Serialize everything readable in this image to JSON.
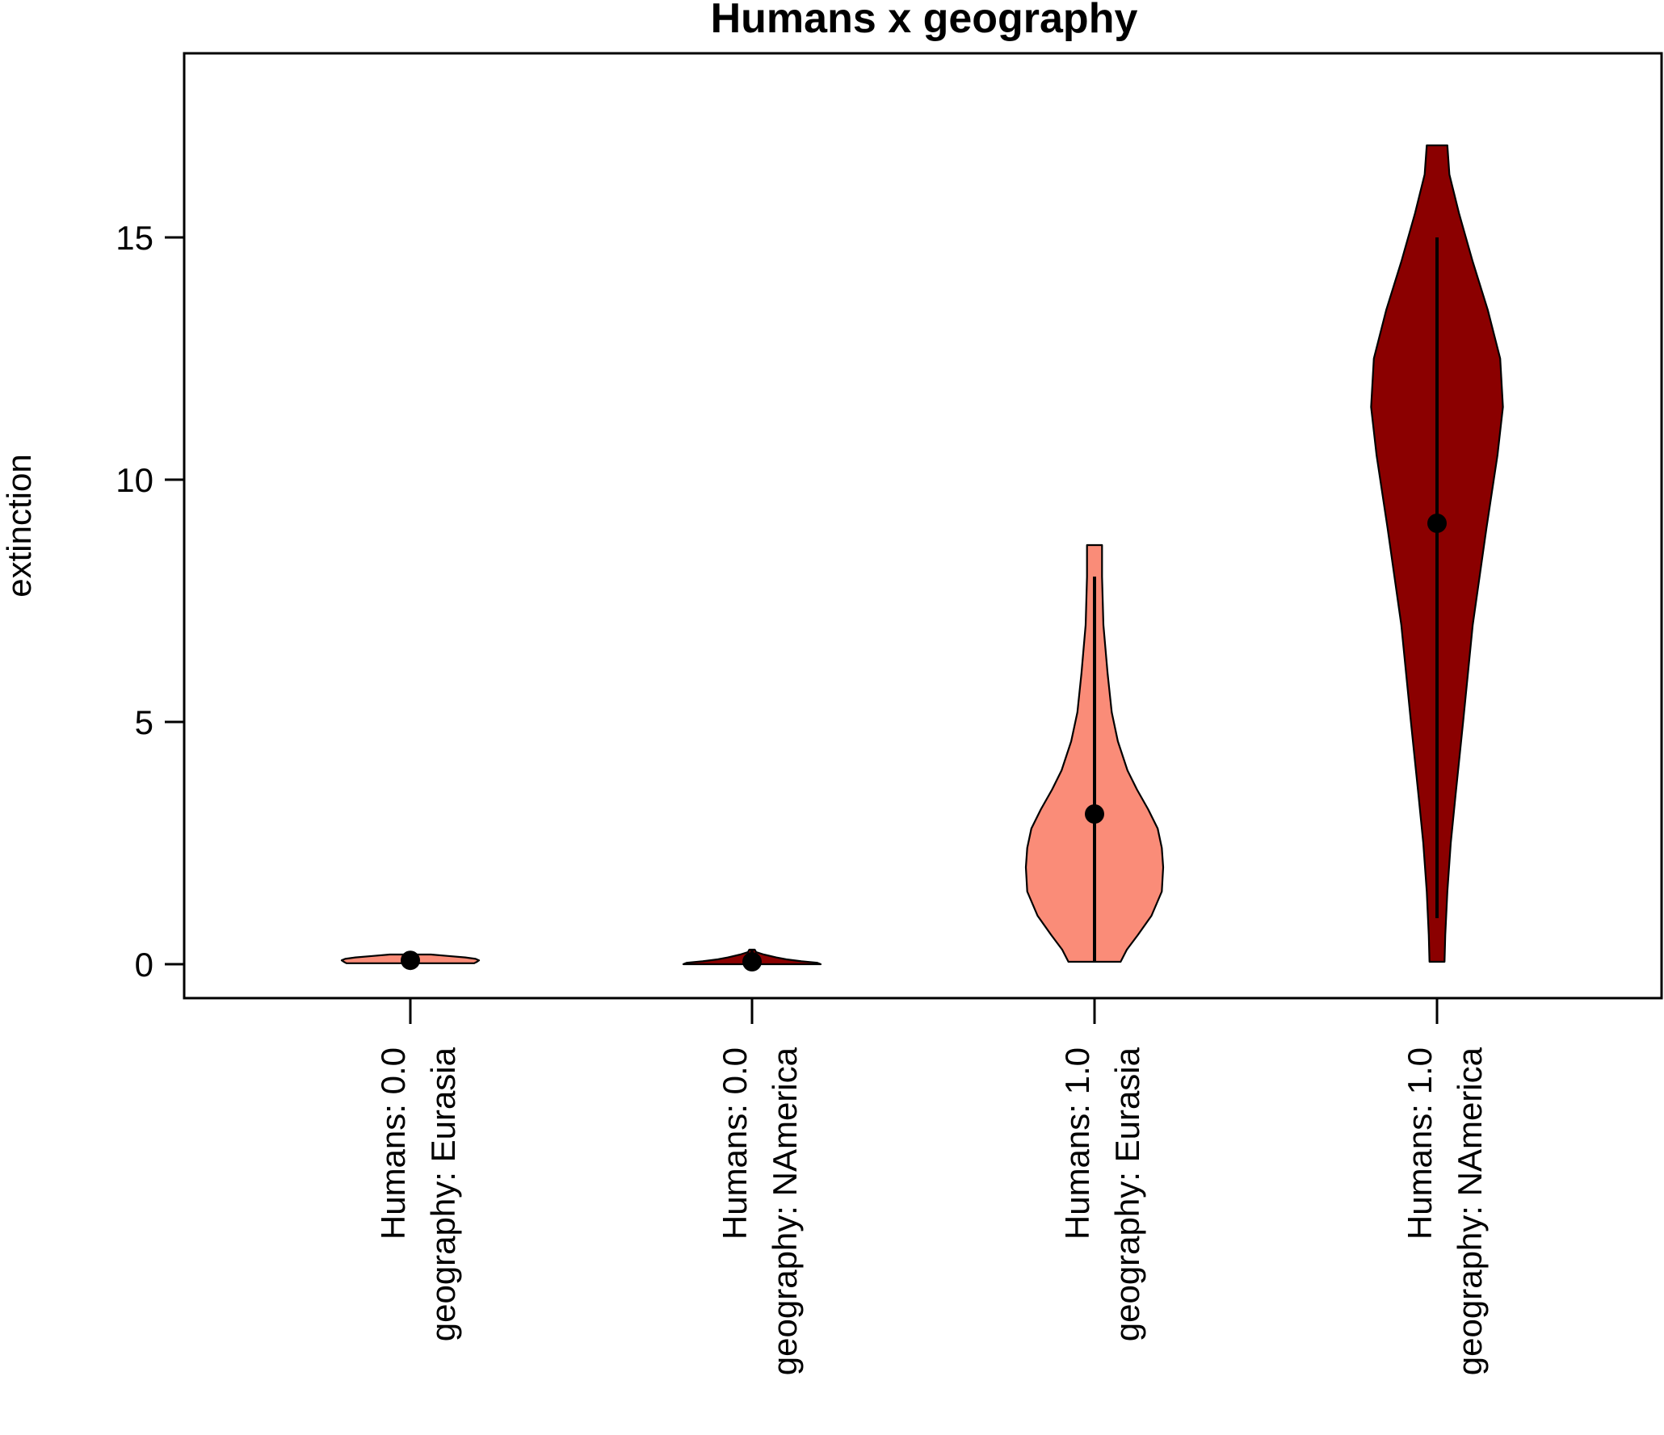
{
  "chart_data": {
    "type": "violin",
    "title": "Humans x geography",
    "xlabel": "",
    "ylabel": "extinction",
    "ylim": [
      -0.7,
      18.8
    ],
    "yticks": [
      0,
      5,
      10,
      15
    ],
    "ytick_labels": [
      "0",
      "5",
      "10",
      "15"
    ],
    "grid": false,
    "legend": "none",
    "colors": {
      "Eurasia": "#FA8C78",
      "NAmerica": "#8B0000",
      "outline": "#000000"
    },
    "categories": [
      {
        "label_line1": "Humans: 0.0",
        "label_line2": "geography: Eurasia",
        "humans": "0.0",
        "geography": "Eurasia",
        "min": 0.02,
        "max": 0.2,
        "whisker_low": 0.03,
        "whisker_high": 0.15,
        "mean": 0.08,
        "density": [
          [
            0.02,
            0.93
          ],
          [
            0.05,
            0.97
          ],
          [
            0.08,
            1.0
          ],
          [
            0.11,
            0.95
          ],
          [
            0.14,
            0.8
          ],
          [
            0.17,
            0.55
          ],
          [
            0.2,
            0.3
          ]
        ]
      },
      {
        "label_line1": "Humans: 0.0",
        "label_line2": "geography: NAmerica",
        "humans": "0.0",
        "geography": "NAmerica",
        "min": 0.0,
        "max": 0.3,
        "whisker_low": 0.0,
        "whisker_high": 0.3,
        "mean": 0.05,
        "density": [
          [
            0.0,
            1.0
          ],
          [
            0.03,
            0.95
          ],
          [
            0.06,
            0.72
          ],
          [
            0.1,
            0.5
          ],
          [
            0.14,
            0.35
          ],
          [
            0.2,
            0.17
          ],
          [
            0.25,
            0.06
          ],
          [
            0.3,
            0.04
          ]
        ]
      },
      {
        "label_line1": "Humans: 1.0",
        "label_line2": "geography: Eurasia",
        "humans": "1.0",
        "geography": "Eurasia",
        "min": 0.05,
        "max": 8.65,
        "whisker_low": 0.05,
        "whisker_high": 8.0,
        "mean": 3.1,
        "density": [
          [
            0.05,
            0.38
          ],
          [
            0.3,
            0.47
          ],
          [
            0.6,
            0.63
          ],
          [
            1.0,
            0.83
          ],
          [
            1.5,
            0.98
          ],
          [
            2.0,
            1.0
          ],
          [
            2.4,
            0.98
          ],
          [
            2.8,
            0.92
          ],
          [
            3.2,
            0.78
          ],
          [
            3.6,
            0.62
          ],
          [
            4.0,
            0.48
          ],
          [
            4.6,
            0.34
          ],
          [
            5.2,
            0.25
          ],
          [
            6.0,
            0.19
          ],
          [
            7.0,
            0.13
          ],
          [
            8.0,
            0.11
          ],
          [
            8.65,
            0.11
          ]
        ]
      },
      {
        "label_line1": "Humans: 1.0",
        "label_line2": "geography: NAmerica",
        "humans": "1.0",
        "geography": "NAmerica",
        "min": 0.05,
        "max": 16.9,
        "whisker_low": 0.95,
        "whisker_high": 15.0,
        "mean": 9.1,
        "density": [
          [
            0.05,
            0.11
          ],
          [
            0.6,
            0.12
          ],
          [
            1.5,
            0.15
          ],
          [
            2.5,
            0.2
          ],
          [
            3.5,
            0.27
          ],
          [
            5.0,
            0.38
          ],
          [
            7.0,
            0.52
          ],
          [
            9.0,
            0.72
          ],
          [
            10.5,
            0.88
          ],
          [
            11.5,
            0.96
          ],
          [
            12.5,
            0.92
          ],
          [
            13.5,
            0.74
          ],
          [
            14.5,
            0.52
          ],
          [
            15.5,
            0.32
          ],
          [
            16.3,
            0.18
          ],
          [
            16.9,
            0.15
          ]
        ]
      }
    ]
  }
}
